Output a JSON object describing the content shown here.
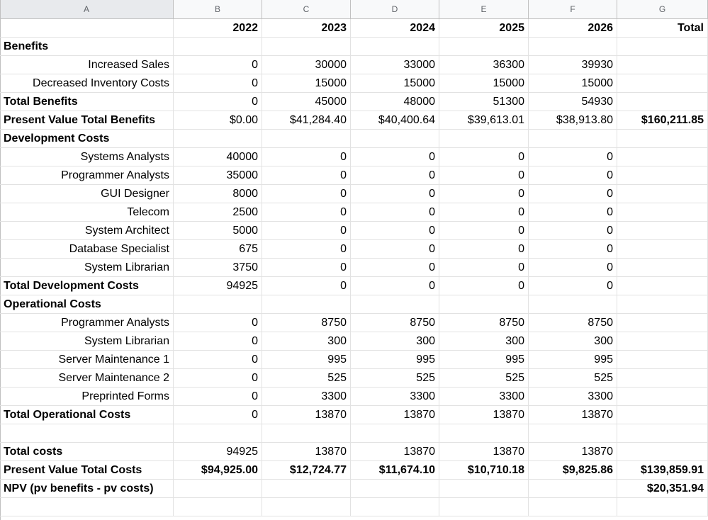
{
  "columns": [
    "A",
    "B",
    "C",
    "D",
    "E",
    "F",
    "G"
  ],
  "rows": [
    {
      "cells": [
        "",
        "2022",
        "2023",
        "2024",
        "2025",
        "2026",
        "Total"
      ],
      "style": "header"
    },
    {
      "cells": [
        "Benefits",
        "",
        "",
        "",
        "",
        "",
        ""
      ],
      "style": "section"
    },
    {
      "cells": [
        "Increased Sales",
        "0",
        "30000",
        "33000",
        "36300",
        "39930",
        ""
      ],
      "style": "item"
    },
    {
      "cells": [
        "Decreased Inventory Costs",
        "0",
        "15000",
        "15000",
        "15000",
        "15000",
        ""
      ],
      "style": "item"
    },
    {
      "cells": [
        "Total Benefits",
        "0",
        "45000",
        "48000",
        "51300",
        "54930",
        ""
      ],
      "style": "total"
    },
    {
      "cells": [
        "Present Value Total Benefits",
        "$0.00",
        "$41,284.40",
        "$40,400.64",
        "$39,613.01",
        "$38,913.80",
        "$160,211.85"
      ],
      "style": "pv"
    },
    {
      "cells": [
        "Development Costs",
        "",
        "",
        "",
        "",
        "",
        ""
      ],
      "style": "section"
    },
    {
      "cells": [
        "Systems Analysts",
        "40000",
        "0",
        "0",
        "0",
        "0",
        ""
      ],
      "style": "item"
    },
    {
      "cells": [
        "Programmer Analysts",
        "35000",
        "0",
        "0",
        "0",
        "0",
        ""
      ],
      "style": "item"
    },
    {
      "cells": [
        "GUI Designer",
        "8000",
        "0",
        "0",
        "0",
        "0",
        ""
      ],
      "style": "item"
    },
    {
      "cells": [
        "Telecom",
        "2500",
        "0",
        "0",
        "0",
        "0",
        ""
      ],
      "style": "item"
    },
    {
      "cells": [
        "System Architect",
        "5000",
        "0",
        "0",
        "0",
        "0",
        ""
      ],
      "style": "item"
    },
    {
      "cells": [
        "Database Specialist",
        "675",
        "0",
        "0",
        "0",
        "0",
        ""
      ],
      "style": "item"
    },
    {
      "cells": [
        "System Librarian",
        "3750",
        "0",
        "0",
        "0",
        "0",
        ""
      ],
      "style": "item"
    },
    {
      "cells": [
        "Total Development Costs",
        "94925",
        "0",
        "0",
        "0",
        "0",
        ""
      ],
      "style": "total"
    },
    {
      "cells": [
        "Operational Costs",
        "",
        "",
        "",
        "",
        "",
        ""
      ],
      "style": "section"
    },
    {
      "cells": [
        "Programmer Analysts",
        "0",
        "8750",
        "8750",
        "8750",
        "8750",
        ""
      ],
      "style": "item"
    },
    {
      "cells": [
        "System Librarian",
        "0",
        "300",
        "300",
        "300",
        "300",
        ""
      ],
      "style": "item"
    },
    {
      "cells": [
        "Server Maintenance 1",
        "0",
        "995",
        "995",
        "995",
        "995",
        ""
      ],
      "style": "item"
    },
    {
      "cells": [
        "Server Maintenance 2",
        "0",
        "525",
        "525",
        "525",
        "525",
        ""
      ],
      "style": "item"
    },
    {
      "cells": [
        "Preprinted Forms",
        "0",
        "3300",
        "3300",
        "3300",
        "3300",
        ""
      ],
      "style": "item"
    },
    {
      "cells": [
        "Total Operational Costs",
        "0",
        "13870",
        "13870",
        "13870",
        "13870",
        ""
      ],
      "style": "total"
    },
    {
      "cells": [
        "",
        "",
        "",
        "",
        "",
        "",
        ""
      ],
      "style": "blank"
    },
    {
      "cells": [
        "Total costs",
        "94925",
        "13870",
        "13870",
        "13870",
        "13870",
        ""
      ],
      "style": "total"
    },
    {
      "cells": [
        "Present Value Total Costs",
        "$94,925.00",
        "$12,724.77",
        "$11,674.10",
        "$10,710.18",
        "$9,825.86",
        "$139,859.91"
      ],
      "style": "pvbold"
    },
    {
      "cells": [
        "NPV (pv benefits - pv costs)",
        "",
        "",
        "",
        "",
        "",
        "$20,351.94"
      ],
      "style": "pvbold"
    },
    {
      "cells": [
        "",
        "",
        "",
        "",
        "",
        "",
        ""
      ],
      "style": "blank"
    }
  ]
}
